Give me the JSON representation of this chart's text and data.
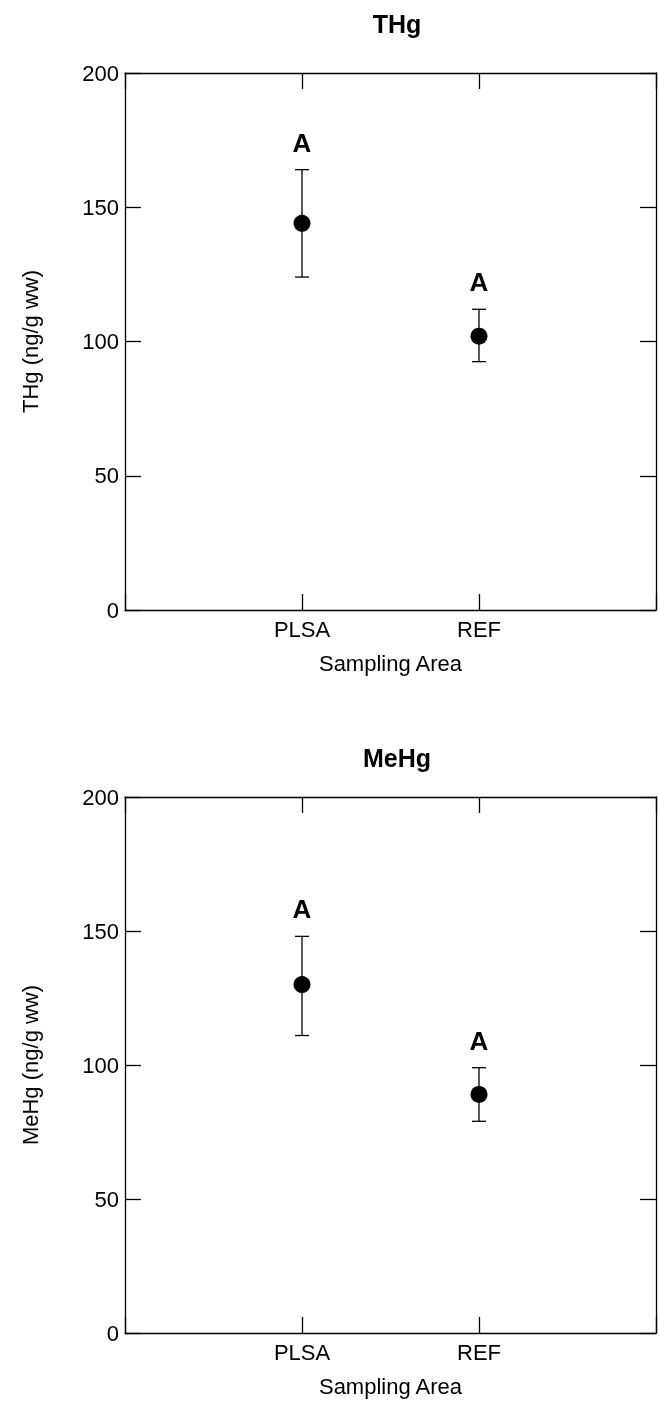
{
  "chart_data": [
    {
      "type": "scatter",
      "title": "THg",
      "xlabel": "Sampling Area",
      "ylabel": "THg (ng/g ww)",
      "categories": [
        null,
        "PLSA",
        "REF",
        null
      ],
      "values": [
        null,
        144,
        102,
        null
      ],
      "errors": [
        null,
        [
          124,
          164
        ],
        [
          92.5,
          112
        ],
        null
      ],
      "color": "#000000",
      "marker": "circle",
      "ylim": [
        0,
        200
      ],
      "yticks": [
        0,
        50,
        100,
        150,
        200
      ],
      "annotations": [
        "A",
        "A"
      ]
    },
    {
      "type": "scatter",
      "title": "MeHg",
      "xlabel": "Sampling Area",
      "ylabel": "MeHg (ng/g ww)",
      "categories": [
        null,
        "PLSA",
        "REF",
        null
      ],
      "values": [
        null,
        130,
        89,
        null
      ],
      "errors": [
        null,
        [
          111,
          148
        ],
        [
          79,
          99
        ],
        null
      ],
      "color": "#000000",
      "marker": "circle",
      "ylim": [
        0,
        200
      ],
      "yticks": [
        0,
        50,
        100,
        150,
        200
      ],
      "annotations": [
        "A",
        "A"
      ]
    }
  ]
}
